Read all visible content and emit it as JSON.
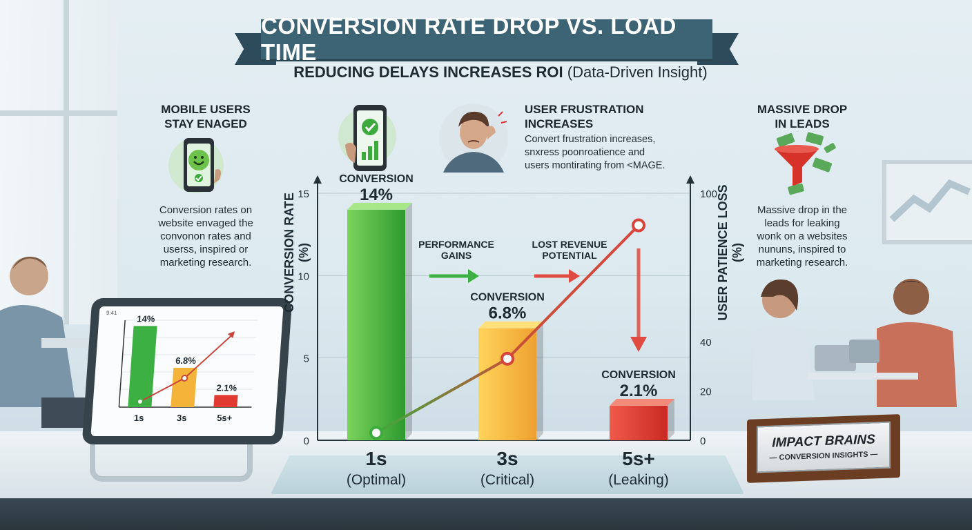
{
  "title": "CONVERSION RATE DROP VS. LOAD TIME",
  "subtitle": {
    "bold": "REDUCING DELAYS INCREASES ROI",
    "normal": "(Data-Driven Insight)"
  },
  "left_panel": {
    "heading": "MOBILE USERS\nSTAY ENAGED",
    "body": "Conversion rates on\nwebsite envaged the\nconvonon rates and\nuserss, inspired or\nmarketing research."
  },
  "middle_panel": {
    "heading": "USER FRUSTRATION\nINCREASES",
    "body": "Convert frustration increases,\nsnxress poonroatience and\nusers montirating from <MAGE."
  },
  "right_panel": {
    "heading": "MASSIVE DROP\nIN LEADS",
    "body": "Massive drop in the\nleads for leaking\nwonk on a websites\nnununs, inspired to\nmarketing research."
  },
  "annotations": {
    "performance_gains": "PERFORMANCE\nGAINS",
    "lost_revenue": "LOST REVENUE\nPOTENTIAL"
  },
  "nameplate": {
    "title": "IMPACT BRAINS",
    "subtitle": "CONVERSION INSIGHTS"
  },
  "colors": {
    "banner": "#3d6475",
    "bar_good": "#3cb043",
    "bar_mid": "#f4b43a",
    "bar_bad": "#e03a32",
    "line": "#d8443a"
  },
  "chart_data": {
    "type": "bar",
    "categories": [
      "1s",
      "3s",
      "5s+"
    ],
    "category_sublabels": [
      "(Optimal)",
      "(Critical)",
      "(Leaking)"
    ],
    "series": [
      {
        "name": "CONVERSION RATE (%)",
        "values": [
          14,
          6.8,
          2.1
        ],
        "axis": "left"
      },
      {
        "name": "USER PATIENCE LOSS (%)",
        "type": "line",
        "values": [
          3,
          33,
          87
        ],
        "axis": "right"
      }
    ],
    "bar_labels": [
      {
        "top": "CONVERSION",
        "value": "14%"
      },
      {
        "top": "CONVERSION",
        "value": "6.8%"
      },
      {
        "top": "CONVERSION",
        "value": "2.1%"
      }
    ],
    "ylabel": "CONVERSION RATE (%)",
    "ylabel_right": "USER PATIENCE LOSS (%)",
    "ylim": [
      0,
      15
    ],
    "ylim_right": [
      0,
      100
    ],
    "yticks": [
      "0",
      "5",
      "10",
      "15"
    ],
    "yticks_right": [
      "0",
      "20",
      "40",
      "100"
    ],
    "tablet_chart": {
      "categories": [
        "1s",
        "3s",
        "5s+"
      ],
      "values": [
        14,
        6.8,
        2.1
      ],
      "labels": [
        "14%",
        "6.8%",
        "2.1%"
      ],
      "header": "9:41"
    }
  }
}
